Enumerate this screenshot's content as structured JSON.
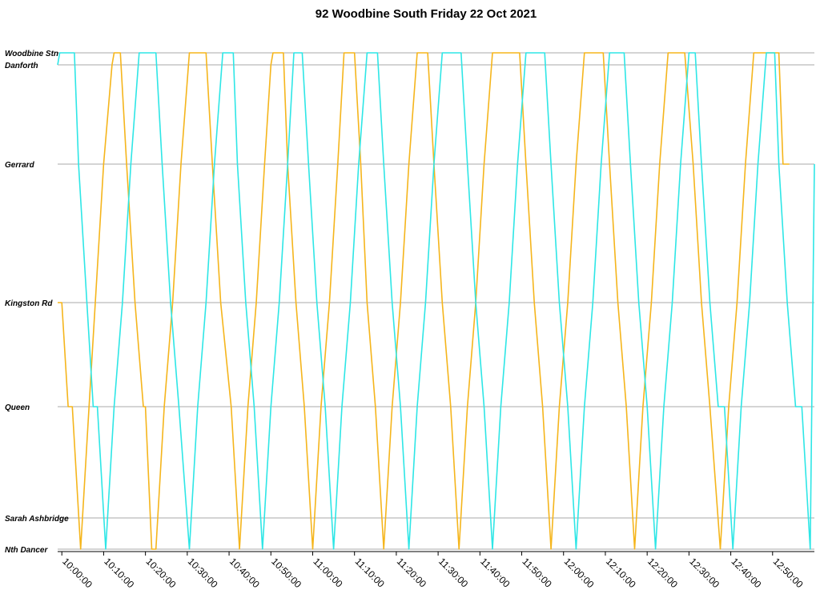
{
  "chart_data": {
    "type": "line",
    "title": "92 Woodbine South Friday 22 Oct 2021",
    "xlabel": "",
    "ylabel": "",
    "xlim": [
      "09:59:00",
      "13:00:00"
    ],
    "x_ticks": [
      "10:00:00",
      "10:10:00",
      "10:20:00",
      "10:30:00",
      "10:40:00",
      "10:50:00",
      "11:00:00",
      "11:10:00",
      "11:20:00",
      "11:30:00",
      "11:40:00",
      "11:50:00",
      "12:00:00",
      "12:10:00",
      "12:20:00",
      "12:30:00",
      "12:40:00",
      "12:50:00"
    ],
    "stops": [
      "Woodbine Stn",
      "Danforth",
      "Gerrard",
      "Kingston Rd",
      "Queen",
      "Sarah Ashbridge",
      "Nth Dancer"
    ],
    "grid": true,
    "legend": "none",
    "series": [
      {
        "color": "#f5b51c",
        "points": [
          [
            "09:59:00",
            "Kingston Rd"
          ],
          [
            "10:00:00",
            "Kingston Rd"
          ],
          [
            "10:01:30",
            "Queen"
          ],
          [
            "10:02:30",
            "Queen"
          ],
          [
            "10:04:30",
            "Nth Dancer"
          ],
          [
            "10:06:30",
            "Queen"
          ],
          [
            "10:08:00",
            "Kingston Rd"
          ],
          [
            "10:10:00",
            "Gerrard"
          ],
          [
            "10:12:00",
            "Danforth"
          ],
          [
            "10:12:30",
            "Woodbine Stn"
          ],
          [
            "10:14:00",
            "Woodbine Stn"
          ],
          [
            "10:15:30",
            "Gerrard"
          ],
          [
            "10:17:30",
            "Kingston Rd"
          ],
          [
            "10:19:30",
            "Queen"
          ],
          [
            "10:20:00",
            "Queen"
          ],
          [
            "10:21:30",
            "Nth Dancer"
          ],
          [
            "10:22:30",
            "Nth Dancer"
          ],
          [
            "10:24:30",
            "Queen"
          ],
          [
            "10:26:30",
            "Kingston Rd"
          ],
          [
            "10:28:30",
            "Gerrard"
          ],
          [
            "10:30:30",
            "Woodbine Stn"
          ],
          [
            "10:34:30",
            "Woodbine Stn"
          ],
          [
            "10:36:00",
            "Gerrard"
          ],
          [
            "10:38:00",
            "Kingston Rd"
          ],
          [
            "10:40:30",
            "Queen"
          ],
          [
            "10:42:30",
            "Nth Dancer"
          ],
          [
            "10:44:30",
            "Queen"
          ],
          [
            "10:46:30",
            "Kingston Rd"
          ],
          [
            "10:48:30",
            "Gerrard"
          ],
          [
            "10:50:00",
            "Danforth"
          ],
          [
            "10:50:30",
            "Woodbine Stn"
          ],
          [
            "10:53:00",
            "Woodbine Stn"
          ],
          [
            "10:54:00",
            "Gerrard"
          ],
          [
            "10:56:00",
            "Kingston Rd"
          ],
          [
            "10:58:00",
            "Queen"
          ],
          [
            "11:00:00",
            "Nth Dancer"
          ],
          [
            "11:02:00",
            "Queen"
          ],
          [
            "11:04:00",
            "Kingston Rd"
          ],
          [
            "11:06:00",
            "Gerrard"
          ],
          [
            "11:07:30",
            "Woodbine Stn"
          ],
          [
            "11:10:00",
            "Woodbine Stn"
          ],
          [
            "11:11:30",
            "Gerrard"
          ],
          [
            "11:13:00",
            "Kingston Rd"
          ],
          [
            "11:15:00",
            "Queen"
          ],
          [
            "11:17:00",
            "Nth Dancer"
          ],
          [
            "11:19:00",
            "Queen"
          ],
          [
            "11:21:00",
            "Kingston Rd"
          ],
          [
            "11:23:00",
            "Gerrard"
          ],
          [
            "11:25:00",
            "Woodbine Stn"
          ],
          [
            "11:27:30",
            "Woodbine Stn"
          ],
          [
            "11:29:00",
            "Gerrard"
          ],
          [
            "11:31:00",
            "Kingston Rd"
          ],
          [
            "11:33:00",
            "Queen"
          ],
          [
            "11:35:00",
            "Nth Dancer"
          ],
          [
            "11:37:00",
            "Queen"
          ],
          [
            "11:39:00",
            "Kingston Rd"
          ],
          [
            "11:41:00",
            "Gerrard"
          ],
          [
            "11:43:00",
            "Woodbine Stn"
          ],
          [
            "11:49:30",
            "Woodbine Stn"
          ],
          [
            "11:51:00",
            "Gerrard"
          ],
          [
            "11:53:00",
            "Kingston Rd"
          ],
          [
            "11:55:00",
            "Queen"
          ],
          [
            "11:57:00",
            "Nth Dancer"
          ],
          [
            "11:59:00",
            "Queen"
          ],
          [
            "12:01:00",
            "Kingston Rd"
          ],
          [
            "12:03:00",
            "Gerrard"
          ],
          [
            "12:05:00",
            "Woodbine Stn"
          ],
          [
            "12:09:30",
            "Woodbine Stn"
          ],
          [
            "12:11:00",
            "Gerrard"
          ],
          [
            "12:13:00",
            "Kingston Rd"
          ],
          [
            "12:15:00",
            "Queen"
          ],
          [
            "12:17:00",
            "Nth Dancer"
          ],
          [
            "12:19:00",
            "Queen"
          ],
          [
            "12:21:00",
            "Kingston Rd"
          ],
          [
            "12:23:00",
            "Gerrard"
          ],
          [
            "12:25:00",
            "Woodbine Stn"
          ],
          [
            "12:29:00",
            "Woodbine Stn"
          ],
          [
            "12:31:00",
            "Gerrard"
          ],
          [
            "12:33:00",
            "Kingston Rd"
          ],
          [
            "12:35:00",
            "Queen"
          ],
          [
            "12:37:30",
            "Nth Dancer"
          ],
          [
            "12:39:30",
            "Queen"
          ],
          [
            "12:41:30",
            "Kingston Rd"
          ],
          [
            "12:43:30",
            "Gerrard"
          ],
          [
            "12:45:30",
            "Woodbine Stn"
          ],
          [
            "12:51:30",
            "Woodbine Stn"
          ],
          [
            "12:52:30",
            "Gerrard"
          ],
          [
            "12:54:00",
            "Gerrard"
          ]
        ]
      },
      {
        "color": "#2ee6e6",
        "points": [
          [
            "09:59:00",
            "Danforth"
          ],
          [
            "09:59:30",
            "Woodbine Stn"
          ],
          [
            "10:03:00",
            "Woodbine Stn"
          ],
          [
            "10:04:00",
            "Gerrard"
          ],
          [
            "10:06:00",
            "Kingston Rd"
          ],
          [
            "10:07:30",
            "Queen"
          ],
          [
            "10:08:30",
            "Queen"
          ],
          [
            "10:10:30",
            "Nth Dancer"
          ],
          [
            "10:12:30",
            "Queen"
          ],
          [
            "10:14:30",
            "Kingston Rd"
          ],
          [
            "10:16:30",
            "Gerrard"
          ],
          [
            "10:18:30",
            "Woodbine Stn"
          ],
          [
            "10:22:30",
            "Woodbine Stn"
          ],
          [
            "10:24:00",
            "Gerrard"
          ],
          [
            "10:26:00",
            "Kingston Rd"
          ],
          [
            "10:28:00",
            "Queen"
          ],
          [
            "10:30:30",
            "Nth Dancer"
          ],
          [
            "10:32:30",
            "Queen"
          ],
          [
            "10:34:30",
            "Kingston Rd"
          ],
          [
            "10:36:30",
            "Gerrard"
          ],
          [
            "10:38:30",
            "Woodbine Stn"
          ],
          [
            "10:41:00",
            "Woodbine Stn"
          ],
          [
            "10:42:00",
            "Gerrard"
          ],
          [
            "10:44:00",
            "Kingston Rd"
          ],
          [
            "10:46:00",
            "Queen"
          ],
          [
            "10:48:00",
            "Nth Dancer"
          ],
          [
            "10:50:00",
            "Queen"
          ],
          [
            "10:52:00",
            "Kingston Rd"
          ],
          [
            "10:54:00",
            "Gerrard"
          ],
          [
            "10:55:30",
            "Woodbine Stn"
          ],
          [
            "10:57:30",
            "Woodbine Stn"
          ],
          [
            "10:59:00",
            "Gerrard"
          ],
          [
            "11:01:00",
            "Kingston Rd"
          ],
          [
            "11:03:00",
            "Queen"
          ],
          [
            "11:05:00",
            "Nth Dancer"
          ],
          [
            "11:07:00",
            "Queen"
          ],
          [
            "11:09:00",
            "Kingston Rd"
          ],
          [
            "11:11:00",
            "Gerrard"
          ],
          [
            "11:13:00",
            "Woodbine Stn"
          ],
          [
            "11:15:30",
            "Woodbine Stn"
          ],
          [
            "11:17:00",
            "Gerrard"
          ],
          [
            "11:19:00",
            "Kingston Rd"
          ],
          [
            "11:21:00",
            "Queen"
          ],
          [
            "11:23:00",
            "Nth Dancer"
          ],
          [
            "11:25:00",
            "Queen"
          ],
          [
            "11:27:00",
            "Kingston Rd"
          ],
          [
            "11:29:00",
            "Gerrard"
          ],
          [
            "11:31:00",
            "Woodbine Stn"
          ],
          [
            "11:35:30",
            "Woodbine Stn"
          ],
          [
            "11:37:00",
            "Gerrard"
          ],
          [
            "11:39:00",
            "Kingston Rd"
          ],
          [
            "11:41:00",
            "Queen"
          ],
          [
            "11:43:00",
            "Nth Dancer"
          ],
          [
            "11:45:00",
            "Queen"
          ],
          [
            "11:47:00",
            "Kingston Rd"
          ],
          [
            "11:49:00",
            "Gerrard"
          ],
          [
            "11:51:00",
            "Woodbine Stn"
          ],
          [
            "11:55:30",
            "Woodbine Stn"
          ],
          [
            "11:57:00",
            "Gerrard"
          ],
          [
            "11:59:00",
            "Kingston Rd"
          ],
          [
            "12:01:00",
            "Queen"
          ],
          [
            "12:03:00",
            "Nth Dancer"
          ],
          [
            "12:05:00",
            "Queen"
          ],
          [
            "12:07:00",
            "Kingston Rd"
          ],
          [
            "12:09:00",
            "Gerrard"
          ],
          [
            "12:11:00",
            "Woodbine Stn"
          ],
          [
            "12:14:30",
            "Woodbine Stn"
          ],
          [
            "12:16:00",
            "Gerrard"
          ],
          [
            "12:18:00",
            "Kingston Rd"
          ],
          [
            "12:20:00",
            "Queen"
          ],
          [
            "12:22:00",
            "Nth Dancer"
          ],
          [
            "12:24:00",
            "Queen"
          ],
          [
            "12:26:00",
            "Kingston Rd"
          ],
          [
            "12:28:00",
            "Gerrard"
          ],
          [
            "12:30:00",
            "Woodbine Stn"
          ],
          [
            "12:31:30",
            "Woodbine Stn"
          ],
          [
            "12:33:00",
            "Gerrard"
          ],
          [
            "12:35:00",
            "Kingston Rd"
          ],
          [
            "12:37:00",
            "Queen"
          ],
          [
            "12:38:30",
            "Queen"
          ],
          [
            "12:40:30",
            "Nth Dancer"
          ],
          [
            "12:42:30",
            "Queen"
          ],
          [
            "12:44:30",
            "Kingston Rd"
          ],
          [
            "12:46:30",
            "Gerrard"
          ],
          [
            "12:48:30",
            "Woodbine Stn"
          ],
          [
            "12:50:30",
            "Woodbine Stn"
          ],
          [
            "12:51:30",
            "Gerrard"
          ],
          [
            "12:53:30",
            "Kingston Rd"
          ],
          [
            "12:55:30",
            "Queen"
          ],
          [
            "12:57:00",
            "Queen"
          ],
          [
            "12:59:00",
            "Nth Dancer"
          ],
          [
            "13:00:00",
            "Gerrard"
          ]
        ]
      }
    ]
  }
}
